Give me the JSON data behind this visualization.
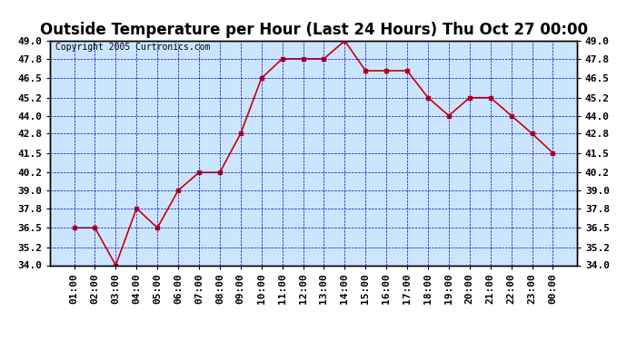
{
  "title": "Outside Temperature per Hour (Last 24 Hours) Thu Oct 27 00:00",
  "copyright": "Copyright 2005 Curtronics.com",
  "x_labels": [
    "01:00",
    "02:00",
    "03:00",
    "04:00",
    "05:00",
    "06:00",
    "07:00",
    "08:00",
    "09:00",
    "10:00",
    "11:00",
    "12:00",
    "13:00",
    "14:00",
    "15:00",
    "16:00",
    "17:00",
    "18:00",
    "19:00",
    "20:00",
    "21:00",
    "22:00",
    "23:00",
    "00:00"
  ],
  "y_values": [
    36.5,
    36.5,
    34.0,
    37.8,
    36.5,
    39.0,
    40.2,
    40.2,
    42.8,
    46.5,
    47.8,
    47.8,
    47.8,
    49.0,
    47.0,
    47.0,
    47.0,
    45.2,
    44.0,
    45.2,
    45.2,
    44.0,
    42.8,
    41.5
  ],
  "line_color": "#cc0000",
  "marker_color": "#cc0000",
  "background_color": "#ffffff",
  "plot_bg_color": "#cce5ff",
  "grid_color": "#0000cc",
  "title_fontsize": 12,
  "copyright_fontsize": 7,
  "ylim": [
    34.0,
    49.0
  ],
  "yticks": [
    34.0,
    35.2,
    36.5,
    37.8,
    39.0,
    40.2,
    41.5,
    42.8,
    44.0,
    45.2,
    46.5,
    47.8,
    49.0
  ],
  "tick_label_fontsize": 8,
  "axis_label_color": "#000000"
}
